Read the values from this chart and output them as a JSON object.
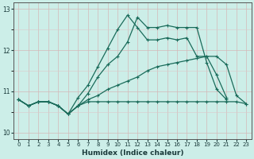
{
  "xlabel": "Humidex (Indice chaleur)",
  "bg_color": "#cceee8",
  "line_color": "#1a6b5a",
  "grid_color_major": "#d4b8b8",
  "grid_color_minor": "#ddc8c8",
  "ylim": [
    9.85,
    13.15
  ],
  "xlim": [
    -0.5,
    23.5
  ],
  "x": [
    0,
    1,
    2,
    3,
    4,
    5,
    6,
    7,
    8,
    9,
    10,
    11,
    12,
    13,
    14,
    15,
    16,
    17,
    18,
    19,
    20,
    21,
    22,
    23
  ],
  "line_peaked": [
    10.8,
    10.65,
    10.75,
    10.75,
    10.65,
    10.45,
    10.85,
    11.15,
    11.6,
    12.05,
    12.5,
    12.85,
    12.55,
    12.25,
    12.25,
    12.3,
    12.25,
    12.3,
    11.85,
    11.85,
    11.4,
    10.85,
    null,
    null
  ],
  "line_peaked2": [
    10.8,
    10.65,
    10.75,
    10.75,
    10.65,
    10.45,
    10.65,
    10.95,
    11.35,
    11.65,
    11.85,
    12.2,
    12.8,
    12.55,
    12.55,
    12.6,
    12.55,
    12.55,
    12.55,
    11.7,
    11.05,
    10.8,
    null,
    null
  ],
  "line_diagonal": [
    10.8,
    10.65,
    10.75,
    10.75,
    10.65,
    10.45,
    10.65,
    10.8,
    10.9,
    11.05,
    11.15,
    11.25,
    11.35,
    11.5,
    11.6,
    11.65,
    11.7,
    11.75,
    11.8,
    11.85,
    11.85,
    11.65,
    10.9,
    10.7
  ],
  "line_flat": [
    10.8,
    10.65,
    10.75,
    10.75,
    10.65,
    10.45,
    10.65,
    10.75,
    10.75,
    10.75,
    10.75,
    10.75,
    10.75,
    10.75,
    10.75,
    10.75,
    10.75,
    10.75,
    10.75,
    10.75,
    10.75,
    10.75,
    10.75,
    10.7
  ]
}
